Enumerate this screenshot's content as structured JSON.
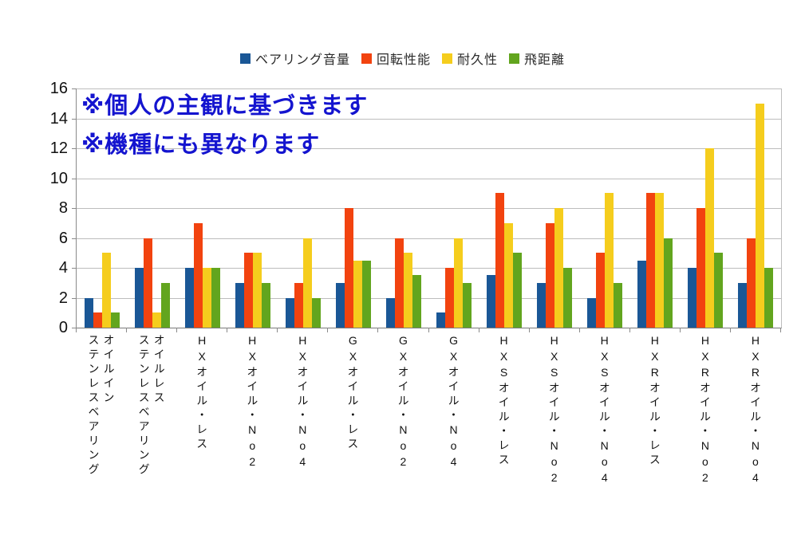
{
  "chart_data": {
    "type": "bar",
    "title": "",
    "xlabel": "",
    "ylabel": "",
    "ylim": [
      0,
      16
    ],
    "yticks": [
      0,
      2,
      4,
      6,
      8,
      10,
      12,
      14,
      16
    ],
    "grid": true,
    "legend_position": "top",
    "categories": [
      "オイルイン\nステンレスベアリング",
      "オイルレス\nステンレスベアリング",
      "HXオイル・レス",
      "HXオイル・No2",
      "HXオイル・No4",
      "GXオイル・レス",
      "GXオイル・No2",
      "GXオイル・No4",
      "HXSオイル・レス",
      "HXSオイル・No2",
      "HXSオイル・No4",
      "HXRオイル・レス",
      "HXRオイル・No2",
      "HXRオイル・No4"
    ],
    "series": [
      {
        "name": "ベアリング音量",
        "color": "#1a5796",
        "values": [
          2,
          4,
          4,
          3,
          2,
          3,
          2,
          1,
          3.5,
          3,
          2,
          4.5,
          4,
          3
        ]
      },
      {
        "name": "回転性能",
        "color": "#f2430f",
        "values": [
          1,
          6,
          7,
          5,
          3,
          8,
          6,
          4,
          9,
          7,
          5,
          9,
          8,
          6
        ]
      },
      {
        "name": "耐久性",
        "color": "#f5cd1d",
        "values": [
          5,
          1,
          4,
          5,
          6,
          4.5,
          5,
          6,
          7,
          8,
          9,
          9,
          12,
          15
        ]
      },
      {
        "name": "飛距離",
        "color": "#62a51e",
        "values": [
          1,
          3,
          4,
          3,
          2,
          4.5,
          3.5,
          3,
          5,
          4,
          3,
          6,
          5,
          4
        ]
      }
    ]
  },
  "annotation": {
    "line1": "※個人の主観に基づきます",
    "line2": "※機種にも異なります",
    "color": "#1414cf"
  },
  "style": {
    "gridline_color": "#bdbdbd",
    "axis_color": "#8a8a8a",
    "background": "#ffffff"
  }
}
